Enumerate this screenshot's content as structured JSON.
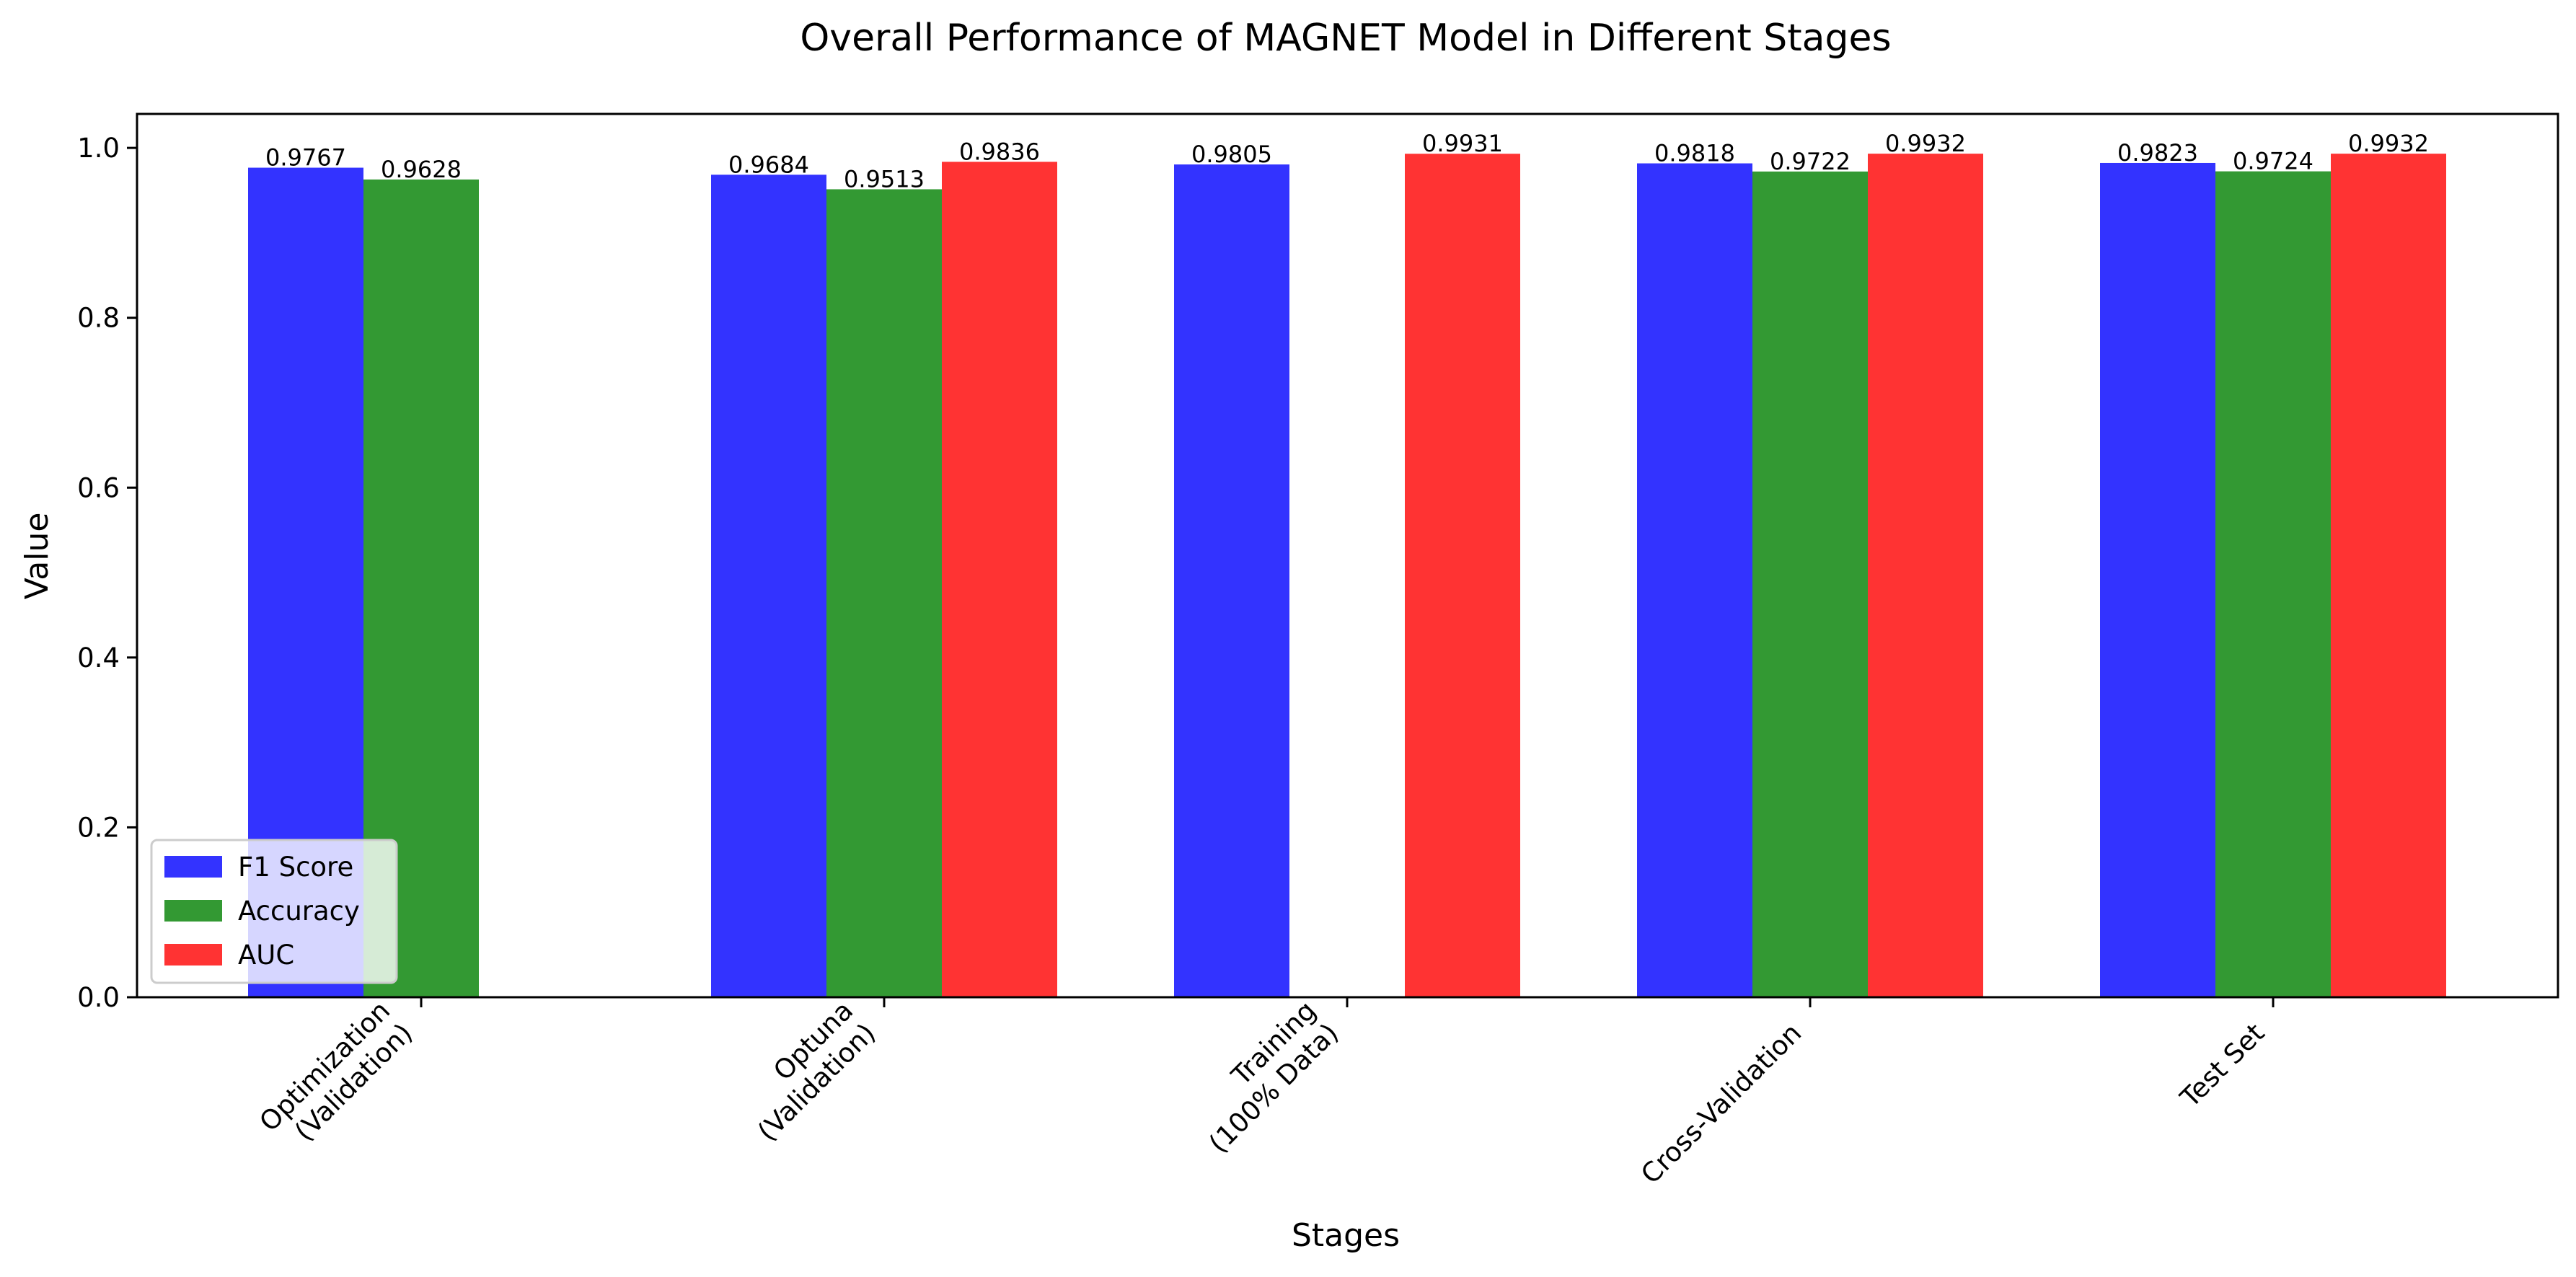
{
  "chart_data": {
    "type": "bar",
    "title": "Overall Performance of MAGNET Model in Different Stages",
    "xlabel": "Stages",
    "ylabel": "Value",
    "ylim": [
      0,
      1.04
    ],
    "yticks": [
      "0.0",
      "0.2",
      "0.4",
      "0.6",
      "0.8",
      "1.0"
    ],
    "categories": [
      [
        "Optimization",
        "(Validation)"
      ],
      [
        "Optuna",
        "(Validation)"
      ],
      [
        "Training",
        "(100% Data)"
      ],
      [
        "Cross-Validation"
      ],
      [
        "Test Set"
      ]
    ],
    "series": [
      {
        "name": "F1 Score",
        "color": "#3333ff",
        "values": [
          0.9767,
          0.9684,
          0.9805,
          0.9818,
          0.9823
        ],
        "labels": [
          "0.9767",
          "0.9684",
          "0.9805",
          "0.9818",
          "0.9823"
        ]
      },
      {
        "name": "Accuracy",
        "color": "#339933",
        "values": [
          0.9628,
          0.9513,
          null,
          0.9722,
          0.9724
        ],
        "labels": [
          "0.9628",
          "0.9513",
          "",
          "0.9722",
          "0.9724"
        ]
      },
      {
        "name": "AUC",
        "color": "#ff3333",
        "values": [
          null,
          0.9836,
          0.9931,
          0.9932,
          0.9932
        ],
        "labels": [
          "",
          "0.9836",
          "0.9931",
          "0.9932",
          "0.9932"
        ]
      }
    ],
    "legend": "bottom-left",
    "grid": false
  }
}
